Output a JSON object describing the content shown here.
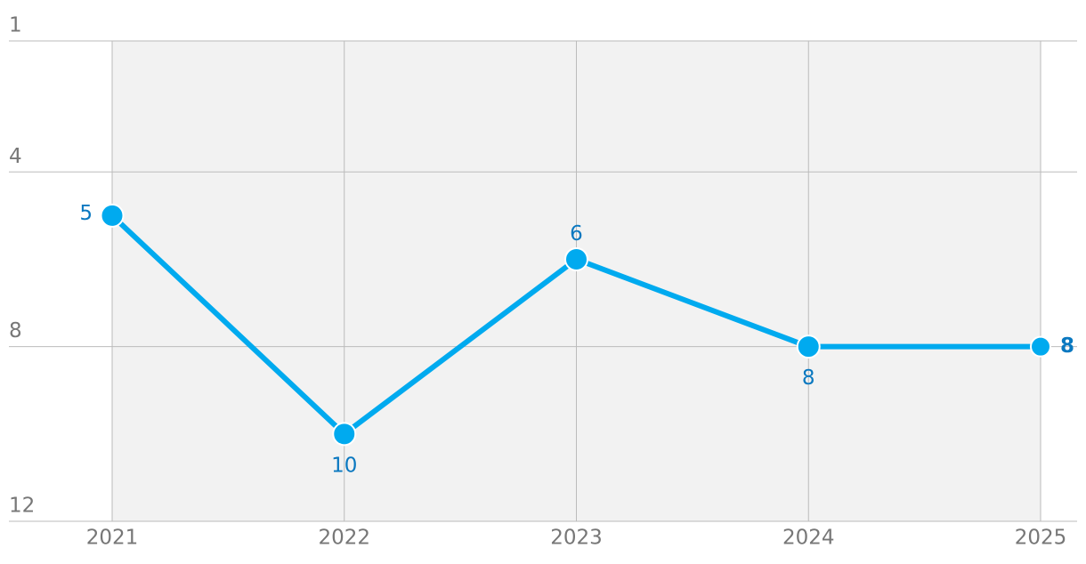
{
  "chart_data": {
    "type": "line",
    "categories": [
      "2021",
      "2022",
      "2023",
      "2024",
      "2025"
    ],
    "values": [
      5,
      10,
      6,
      8,
      8
    ],
    "color": "#00aaef",
    "ylim": [
      1,
      12
    ],
    "y_reversed": true,
    "yticks": [
      1,
      4,
      8,
      12
    ],
    "grid": true
  }
}
